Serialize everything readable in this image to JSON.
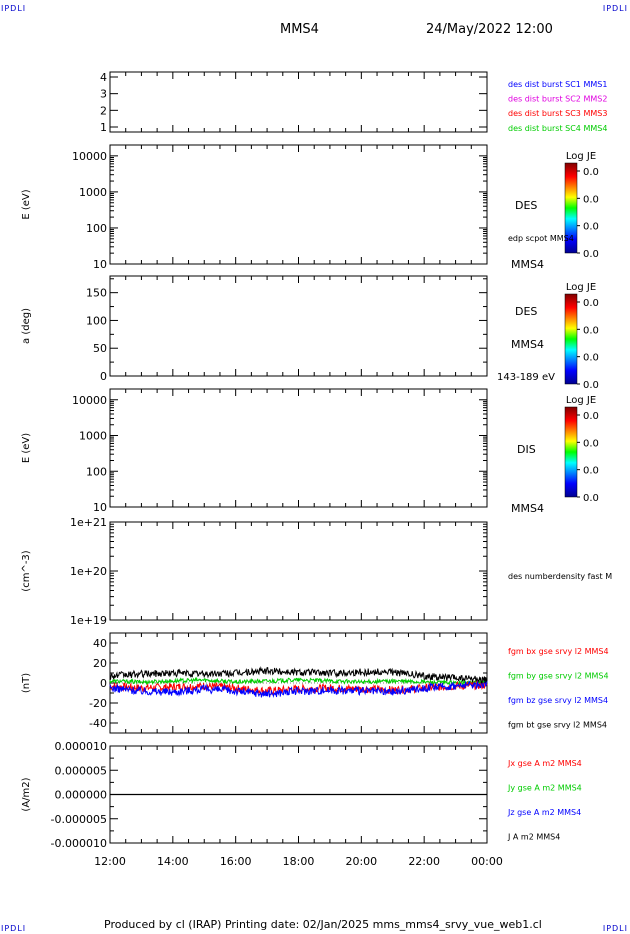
{
  "corner_marks": {
    "tl": "IPDLI",
    "tr": "IPDLI",
    "bl": "IPDLI",
    "br": "IPDLI"
  },
  "header": {
    "spacecraft": "MMS4",
    "datetime": "24/May/2022 12:00"
  },
  "footer": "Produced by cl (IRAP)   Printing date: 02/Jan/2025   mms_mms4_srvy_vue_web1.cl",
  "colors": {
    "blue": "#0000ff",
    "magenta": "#e000e0",
    "red": "#ff0000",
    "green": "#00cc00",
    "black": "#000000"
  },
  "chart_data": [
    {
      "type": "line",
      "panel": "burst",
      "yticks": [
        "4",
        "3",
        "2",
        "1"
      ],
      "ylim": [
        0.7,
        4.3
      ],
      "legend": [
        {
          "label": "des dist burst SC1 MMS1",
          "color": "#0000ff"
        },
        {
          "label": "des dist burst SC2 MMS2",
          "color": "#e000e0"
        },
        {
          "label": "des dist burst SC3 MMS3",
          "color": "#ff0000"
        },
        {
          "label": "des dist burst SC4 MMS4",
          "color": "#00cc00"
        }
      ]
    },
    {
      "type": "heatmap",
      "panel": "des-energy",
      "ylabel": "E (eV)",
      "yscale": "log",
      "ylim": [
        10,
        20000
      ],
      "yticks": [
        "10000",
        "1000",
        "100",
        "10"
      ],
      "side_label": "DES",
      "sub_label": "edp scpot MMS4",
      "bottom_label": "MMS4",
      "colorbar": {
        "title": "Log JE",
        "ticks": [
          "0.0",
          "0.0",
          "0.0",
          "0.0"
        ]
      }
    },
    {
      "type": "heatmap",
      "panel": "des-pitch",
      "ylabel": "a (deg)",
      "ylim": [
        0,
        180
      ],
      "yticks": [
        "150",
        "100",
        "50",
        "0"
      ],
      "side_label": "DES",
      "sub_label": "MMS4",
      "bottom_label": "143-189 eV",
      "colorbar": {
        "title": "Log JE",
        "ticks": [
          "0.0",
          "0.0",
          "0.0",
          "0.0"
        ]
      }
    },
    {
      "type": "heatmap",
      "panel": "dis-energy",
      "ylabel": "E (eV)",
      "yscale": "log",
      "ylim": [
        10,
        20000
      ],
      "yticks": [
        "10000",
        "1000",
        "100",
        "10"
      ],
      "side_label": "DIS",
      "bottom_label": "MMS4",
      "colorbar": {
        "title": "Log JE",
        "ticks": [
          "0.0",
          "0.0",
          "0.0",
          "0.0"
        ]
      }
    },
    {
      "type": "line",
      "panel": "density",
      "ylabel": "(cm^-3)",
      "yscale": "log",
      "ylim": [
        1e+19,
        1e+21
      ],
      "yticks": [
        "1e+21",
        "1e+20",
        "1e+19"
      ],
      "legend": [
        {
          "label": "des numberdensity fast M",
          "color": "#000000"
        }
      ]
    },
    {
      "type": "line",
      "panel": "magnetic-field",
      "ylabel": "(nT)",
      "ylim": [
        -50,
        50
      ],
      "yticks": [
        "40",
        "20",
        "0",
        "-20",
        "-40"
      ],
      "series": [
        {
          "name": "fgm bx gse srvy l2 MMS4",
          "color": "#ff0000",
          "x": [
            12,
            13,
            14,
            15,
            16,
            17,
            18,
            19,
            20,
            21,
            22,
            23,
            24
          ],
          "values": [
            -3,
            -5,
            -4,
            -3,
            -5,
            -8,
            -6,
            -5,
            -6,
            -7,
            -5,
            -3,
            -2
          ]
        },
        {
          "name": "fgm by gse srvy l2 MMS4",
          "color": "#00cc00",
          "x": [
            12,
            13,
            14,
            15,
            16,
            17,
            18,
            19,
            20,
            21,
            22,
            23,
            24
          ],
          "values": [
            2,
            1,
            2,
            3,
            1,
            2,
            3,
            2,
            1,
            2,
            1,
            0,
            1
          ]
        },
        {
          "name": "fgm bz gse srvy l2 MMS4",
          "color": "#0000ff",
          "x": [
            12,
            13,
            14,
            15,
            16,
            17,
            18,
            19,
            20,
            21,
            22,
            23,
            24
          ],
          "values": [
            -5,
            -8,
            -9,
            -6,
            -8,
            -11,
            -8,
            -7,
            -8,
            -9,
            -5,
            -3,
            -1
          ]
        },
        {
          "name": "fgm bt gse srvy l2 MMS4",
          "color": "#000000",
          "x": [
            12,
            13,
            14,
            15,
            16,
            17,
            18,
            19,
            20,
            21,
            22,
            23,
            24
          ],
          "values": [
            7,
            9,
            10,
            9,
            10,
            12,
            11,
            10,
            11,
            11,
            7,
            5,
            3
          ]
        }
      ]
    },
    {
      "type": "line",
      "panel": "current-density",
      "ylabel": "(A/m2)",
      "ylim": [
        -1e-05,
        1e-05
      ],
      "yticks": [
        "0.000010",
        "0.000005",
        "0.000000",
        "-0.000005",
        "-0.000010"
      ],
      "series": [
        {
          "name": "Jx gse A m2 MMS4",
          "color": "#ff0000",
          "x": [
            12,
            18,
            24
          ],
          "values": [
            0,
            0,
            0
          ]
        },
        {
          "name": "Jy gse A m2 MMS4",
          "color": "#00cc00",
          "x": [
            12,
            18,
            24
          ],
          "values": [
            0,
            0,
            0
          ]
        },
        {
          "name": "Jz gse A m2 MMS4",
          "color": "#0000ff",
          "x": [
            12,
            18,
            24
          ],
          "values": [
            0,
            0,
            0
          ]
        },
        {
          "name": "J A m2 MMS4",
          "color": "#000000",
          "x": [
            12,
            18,
            24
          ],
          "values": [
            0,
            0,
            0
          ]
        }
      ]
    }
  ],
  "xaxis": {
    "ticks": [
      "12:00",
      "14:00",
      "16:00",
      "18:00",
      "20:00",
      "22:00",
      "00:00"
    ],
    "range": [
      12,
      24
    ]
  }
}
